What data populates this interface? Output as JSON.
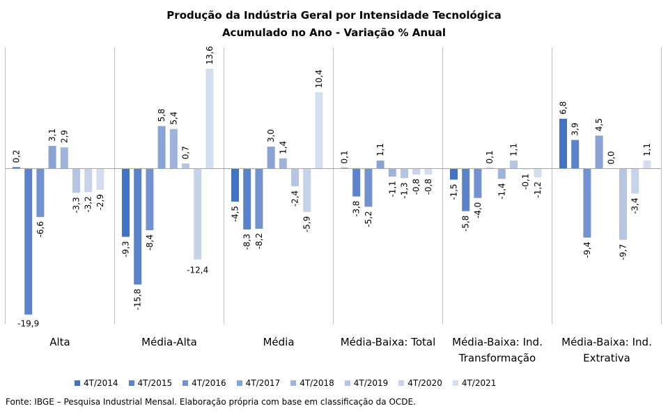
{
  "chart_data": {
    "type": "bar",
    "title": "Produção da Indústria Geral por Intensidade Tecnológica",
    "subtitle": "Acumulado no Ano - Variação % Anual",
    "categories": [
      [
        "Alta"
      ],
      [
        "Média-Alta"
      ],
      [
        "Média"
      ],
      [
        "Média-Baixa: Total"
      ],
      [
        "Média-Baixa: Ind.",
        "Transformação"
      ],
      [
        "Média-Baixa: Ind.",
        "Extrativa"
      ]
    ],
    "series": [
      {
        "name": "4T/2014",
        "color": "#4472C4",
        "values": [
          0.2,
          -9.3,
          -4.5,
          0.1,
          -1.5,
          6.8
        ]
      },
      {
        "name": "4T/2015",
        "color": "#5B82CA",
        "values": [
          -19.9,
          -15.8,
          -8.3,
          -3.8,
          -5.8,
          3.9
        ]
      },
      {
        "name": "4T/2016",
        "color": "#7293CF",
        "values": [
          -6.6,
          -8.4,
          -8.2,
          -5.2,
          -4.0,
          -9.4
        ]
      },
      {
        "name": "4T/2017",
        "color": "#8AA3D5",
        "values": [
          3.1,
          5.8,
          3.0,
          1.1,
          0.1,
          4.5
        ]
      },
      {
        "name": "4T/2018",
        "color": "#A0B4DB",
        "values": [
          2.9,
          5.4,
          1.4,
          -1.1,
          -1.4,
          0.0
        ]
      },
      {
        "name": "4T/2019",
        "color": "#B5C5E2",
        "values": [
          -3.3,
          0.7,
          -2.4,
          -1.3,
          1.1,
          -9.7
        ]
      },
      {
        "name": "4T/2020",
        "color": "#C7D3E9",
        "values": [
          -3.2,
          -12.4,
          -5.9,
          -0.8,
          -0.1,
          -3.4
        ]
      },
      {
        "name": "4T/2021",
        "color": "#D5DEEE",
        "values": [
          -2.9,
          13.6,
          10.4,
          -0.8,
          -1.2,
          1.1
        ]
      }
    ],
    "grid": false,
    "legend_position": "bottom"
  },
  "source": "Fonte: IBGE – Pesquisa Industrial Mensal. Elaboração própria com base em classificação da OCDE."
}
